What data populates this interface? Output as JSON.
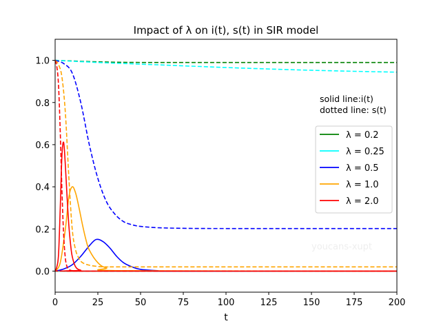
{
  "chart_data": {
    "type": "line",
    "title": "Impact of λ on i(t), s(t) in SIR model",
    "xlabel": "t",
    "ylabel": "",
    "xlim": [
      0,
      200
    ],
    "ylim": [
      -0.1,
      1.1
    ],
    "x_ticks": [
      0,
      25,
      50,
      75,
      100,
      125,
      150,
      175,
      200
    ],
    "y_ticks": [
      0.0,
      0.2,
      0.4,
      0.6,
      0.8,
      1.0
    ],
    "grid": false,
    "legend_position": "right",
    "annotation_lines": [
      "solid line:i(t)",
      "dotted line: s(t)"
    ],
    "watermark": "youcans-xupt",
    "series": [
      {
        "name": "λ = 0.2",
        "color": "#008000",
        "i": {
          "x": [
            0,
            200
          ],
          "y": [
            0.0,
            0.0
          ]
        },
        "s": {
          "x": [
            0,
            25,
            50,
            100,
            200
          ],
          "y": [
            1.0,
            0.993,
            0.99,
            0.99,
            0.99
          ]
        }
      },
      {
        "name": "λ = 0.25",
        "color": "#00ffff",
        "i": {
          "x": [
            0,
            200
          ],
          "y": [
            0.0,
            0.0
          ]
        },
        "s": {
          "x": [
            0,
            25,
            50,
            75,
            100,
            125,
            150,
            175,
            200
          ],
          "y": [
            1.0,
            0.99,
            0.982,
            0.974,
            0.966,
            0.959,
            0.953,
            0.948,
            0.944
          ]
        }
      },
      {
        "name": "λ = 0.5",
        "color": "#0000ff",
        "i": {
          "x": [
            0,
            5,
            10,
            15,
            20,
            24,
            28,
            32,
            36,
            40,
            45,
            50,
            60,
            70,
            200
          ],
          "y": [
            0.0,
            0.01,
            0.03,
            0.07,
            0.12,
            0.15,
            0.14,
            0.11,
            0.07,
            0.04,
            0.02,
            0.008,
            0.002,
            0.0,
            0.0
          ]
        },
        "s": {
          "x": [
            0,
            5,
            10,
            15,
            20,
            25,
            30,
            35,
            40,
            45,
            50,
            60,
            75,
            100,
            200
          ],
          "y": [
            1.0,
            0.985,
            0.94,
            0.8,
            0.6,
            0.44,
            0.33,
            0.27,
            0.235,
            0.22,
            0.212,
            0.206,
            0.203,
            0.202,
            0.202
          ]
        }
      },
      {
        "name": "λ = 1.0",
        "color": "#ffa500",
        "i": {
          "x": [
            0,
            3,
            6,
            8,
            10,
            12,
            14,
            16,
            18,
            20,
            25,
            30,
            40,
            200
          ],
          "y": [
            0.0,
            0.04,
            0.2,
            0.35,
            0.4,
            0.37,
            0.3,
            0.22,
            0.15,
            0.1,
            0.04,
            0.015,
            0.002,
            0.0
          ]
        },
        "s": {
          "x": [
            0,
            2,
            4,
            6,
            8,
            10,
            12,
            14,
            16,
            20,
            25,
            30,
            50,
            200
          ],
          "y": [
            1.0,
            0.98,
            0.92,
            0.75,
            0.45,
            0.2,
            0.1,
            0.06,
            0.04,
            0.028,
            0.022,
            0.02,
            0.02,
            0.02
          ]
        }
      },
      {
        "name": "λ = 2.0",
        "color": "#ff0000",
        "i": {
          "x": [
            0,
            1,
            2,
            3,
            4,
            5,
            6,
            7,
            8,
            9,
            10,
            12,
            15,
            20,
            200
          ],
          "y": [
            0.0,
            0.02,
            0.08,
            0.3,
            0.55,
            0.61,
            0.5,
            0.35,
            0.22,
            0.13,
            0.07,
            0.02,
            0.004,
            0.0,
            0.0
          ]
        },
        "s": {
          "x": [
            0,
            1,
            2,
            3,
            4,
            5,
            6,
            7,
            8,
            9,
            10,
            12,
            15,
            200
          ],
          "y": [
            1.0,
            0.97,
            0.88,
            0.66,
            0.38,
            0.17,
            0.06,
            0.02,
            0.008,
            0.004,
            0.002,
            0.001,
            0.0,
            0.0
          ]
        }
      }
    ]
  }
}
